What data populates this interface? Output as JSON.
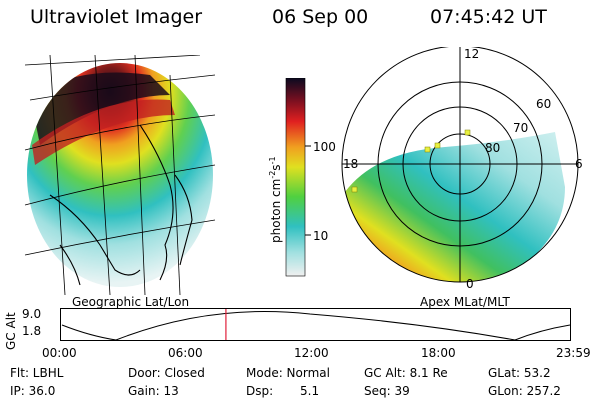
{
  "header": {
    "title": "Ultraviolet Imager",
    "date": "06 Sep 00",
    "time": "07:45:42 UT"
  },
  "colorbar": {
    "label_base": "photon cm",
    "label_exp1": "-2",
    "label_mid": "s",
    "label_exp2": "-1",
    "tick_100": "100",
    "tick_10": "10"
  },
  "panels": {
    "left_caption": "Geographic Lat/Lon",
    "right_caption": "Apex MLat/MLT"
  },
  "polar": {
    "mlt_12": "12",
    "mlt_18": "18",
    "mlt_6": "6",
    "mlt_0": "0",
    "lat_60": "60",
    "lat_70": "70",
    "lat_80": "80"
  },
  "orbit": {
    "axis_title": "GC Alt",
    "y_high": "9.0",
    "y_low": "1.8",
    "x_ticks": [
      "00:00",
      "06:00",
      "12:00",
      "18:00",
      "23:59"
    ],
    "current_time_fraction": 0.324
  },
  "info": {
    "flt": "Flt: LBHL",
    "ip": "IP: 36.0",
    "door": "Door: Closed",
    "gain": "Gain: 13",
    "mode": "Mode: Normal",
    "dsp_label": "Dsp:",
    "dsp_value": "5.1",
    "gc_alt": "GC Alt: 8.1 Re",
    "seq": "Seq: 39",
    "glat": "GLat: 53.2",
    "glon": "GLon: 257.2"
  },
  "colors": {
    "background": "#ffffff",
    "text": "#000000",
    "cursor": "#e0203a"
  }
}
